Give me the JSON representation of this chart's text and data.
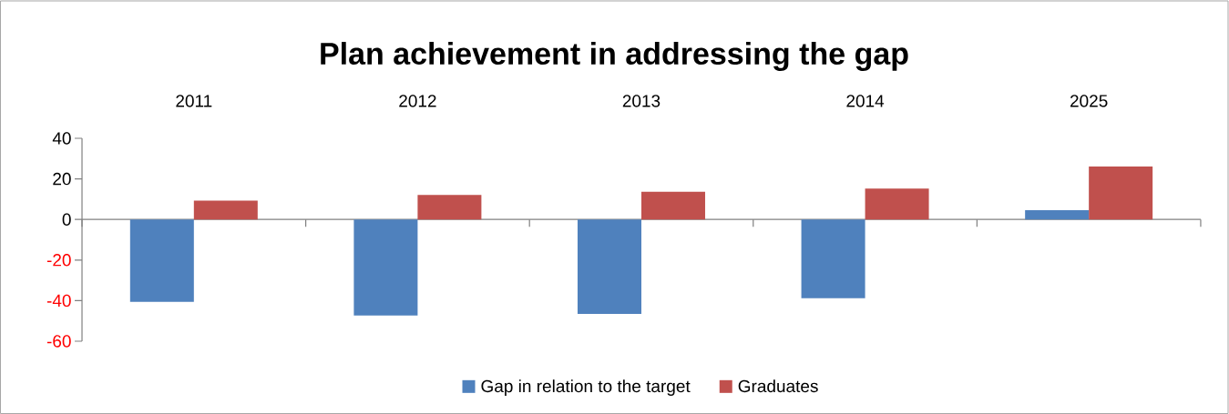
{
  "chart_data": {
    "type": "bar",
    "title": "Plan achievement in addressing the gap",
    "categories": [
      "2011",
      "2012",
      "2013",
      "2014",
      "2025"
    ],
    "series": [
      {
        "name": "Gap in relation to the target",
        "color": "#4f81bd",
        "values": [
          -40.6,
          -47.3,
          -46.5,
          -38.8,
          4.6
        ]
      },
      {
        "name": "Graduates",
        "color": "#c0504d",
        "values": [
          9.3,
          12.1,
          13.7,
          15.2,
          26.1
        ]
      }
    ],
    "ylim": [
      -60,
      40
    ],
    "yticks": [
      -60,
      -40,
      -20,
      0,
      20,
      40
    ],
    "legend": "bottom"
  }
}
